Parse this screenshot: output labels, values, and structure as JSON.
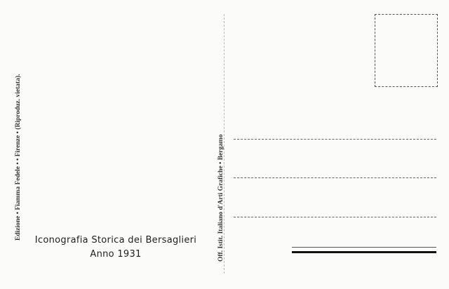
{
  "postcard": {
    "publisher_text": "Edizione • Fiamma Fedele • • Firenze • (Riproduz. vietata).",
    "printer_text": "Off. Istit. Italiano d'Arti Grafiche • Bergamo",
    "title": "Iconografia Storica dei Bersaglieri",
    "year_line": "Anno 1931"
  }
}
